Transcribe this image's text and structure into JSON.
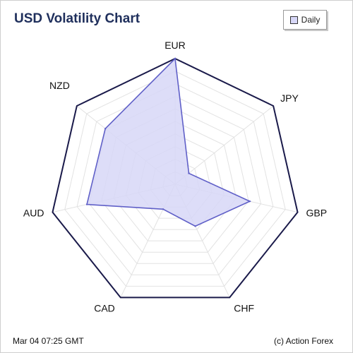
{
  "title": "USD Volatility Chart",
  "legend": {
    "label": "Daily",
    "swatch_color": "#d7d7f7"
  },
  "footer": {
    "timestamp": "Mar 04 07:25 GMT",
    "credit": "(c) Action Forex"
  },
  "colors": {
    "outline": "#1a1a4a",
    "grid": "#e2e2e2",
    "series_stroke": "#6060c8",
    "series_fill": "#d7d7f7"
  },
  "chart_data": {
    "type": "radar",
    "categories": [
      "EUR",
      "JPY",
      "GBP",
      "CHF",
      "CAD",
      "AUD",
      "NZD"
    ],
    "series": [
      {
        "name": "Daily",
        "values": [
          1.0,
          0.14,
          0.61,
          0.37,
          0.22,
          0.72,
          0.71
        ]
      }
    ],
    "range": [
      0,
      1
    ],
    "grid": true,
    "legend_position": "top-right"
  }
}
